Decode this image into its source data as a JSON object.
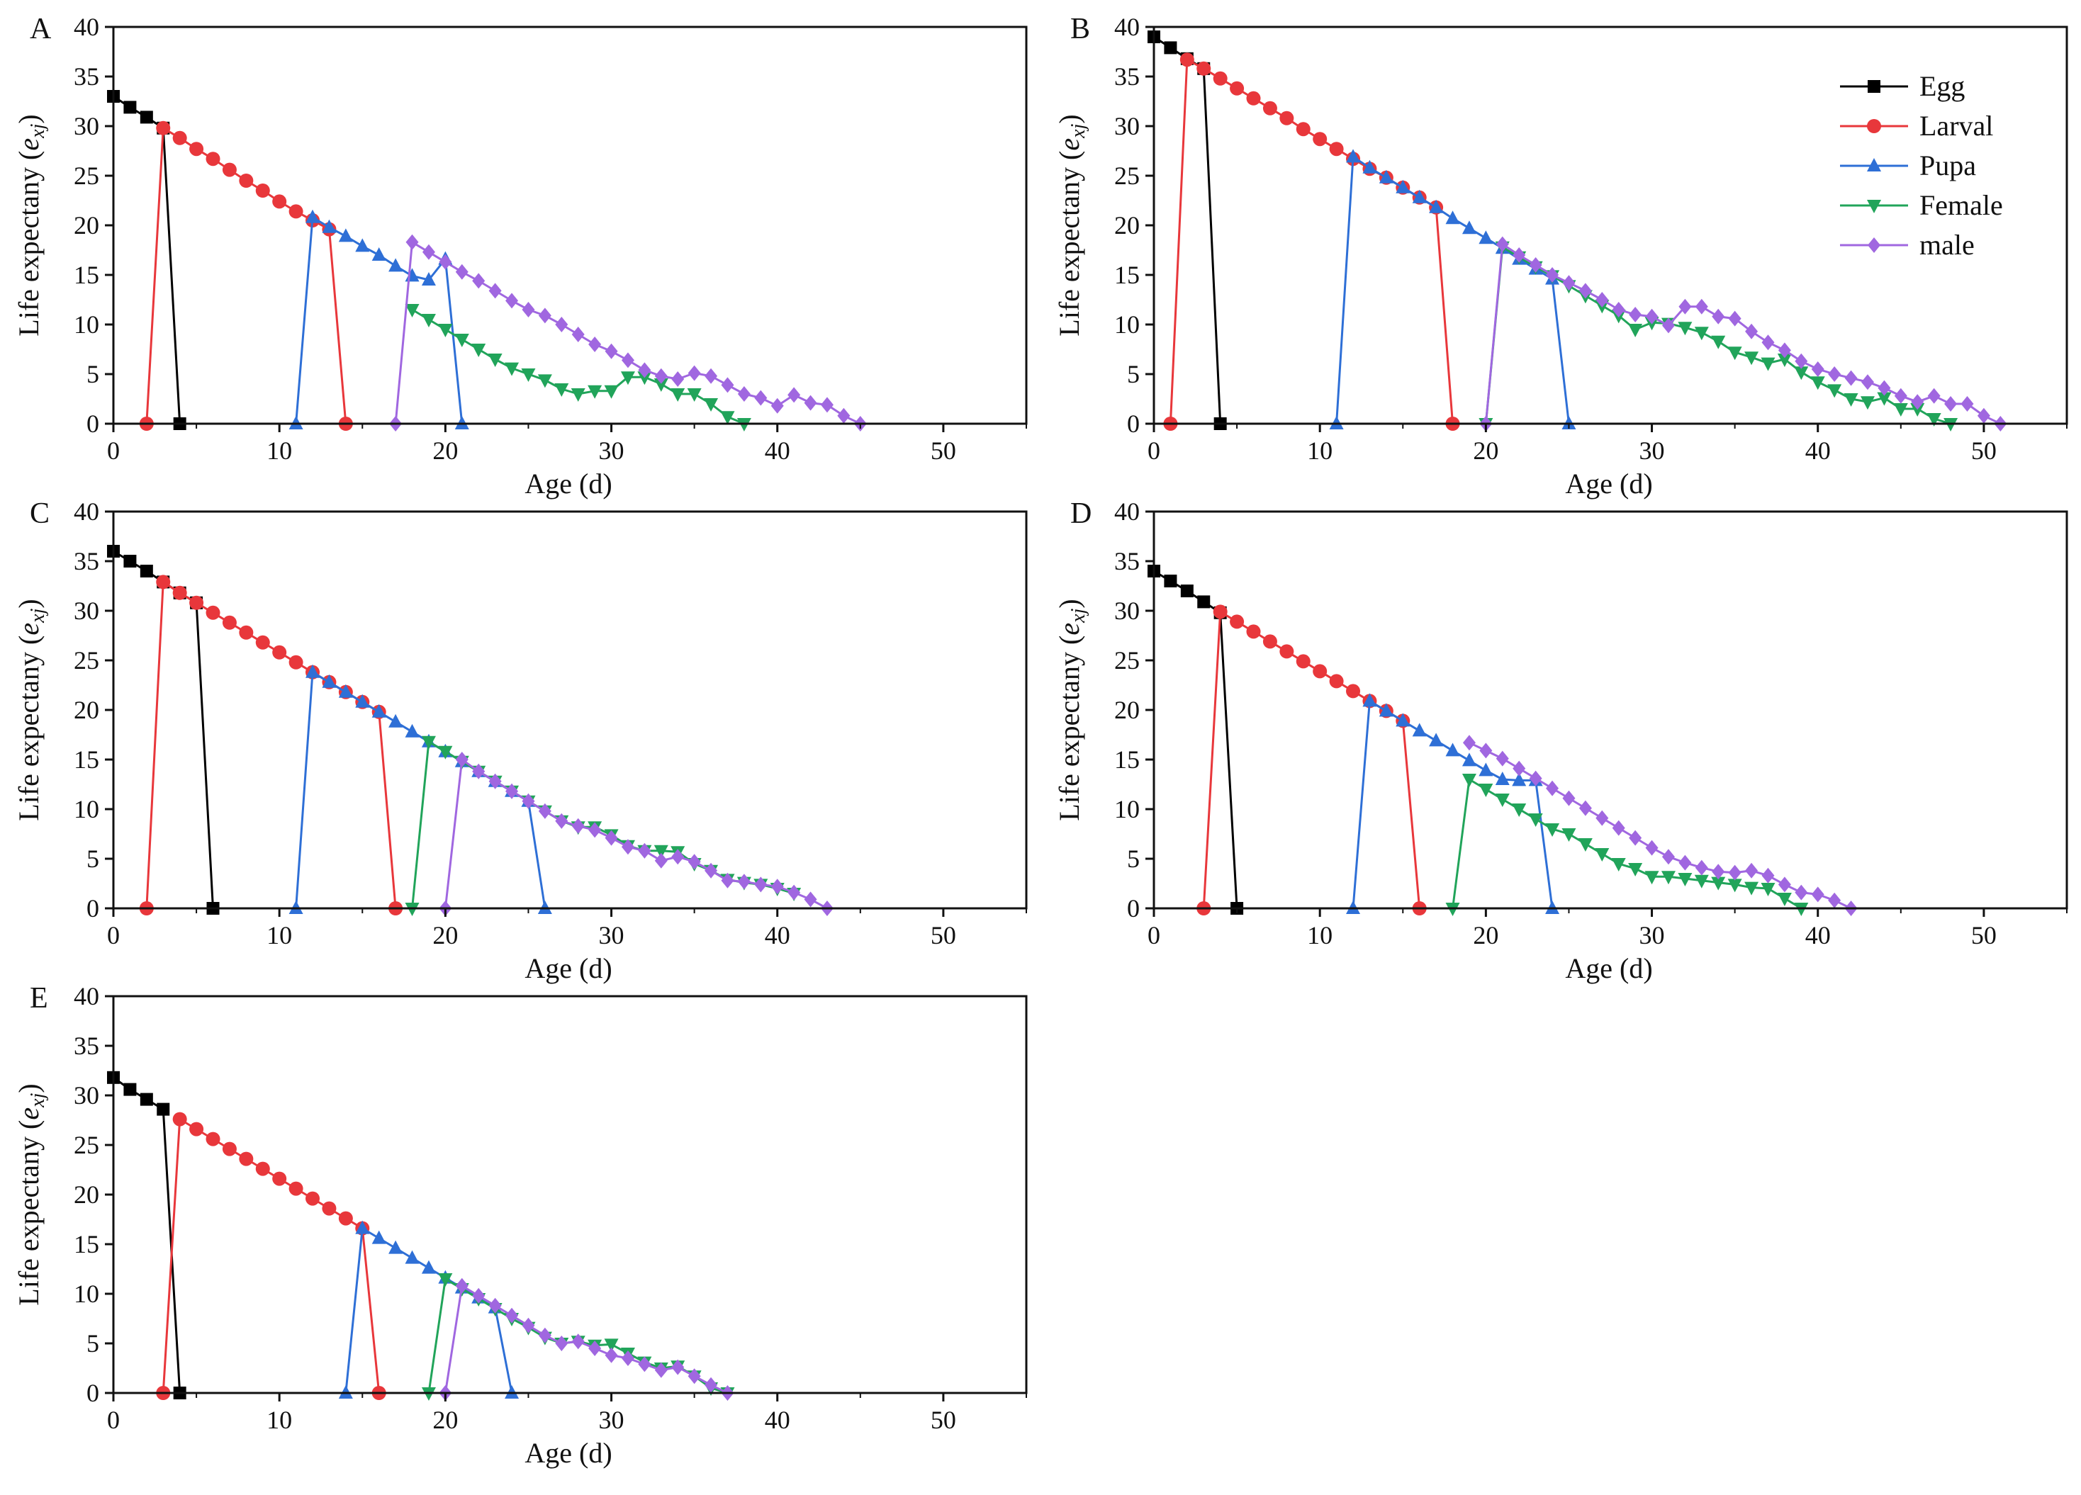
{
  "legend": {
    "entries": [
      {
        "key": "egg",
        "label": "Egg",
        "color": "#000000",
        "marker": "square"
      },
      {
        "key": "larval",
        "label": "Larval",
        "color": "#e8373b",
        "marker": "circle"
      },
      {
        "key": "pupa",
        "label": "Pupa",
        "color": "#2e6fd6",
        "marker": "triangle-up"
      },
      {
        "key": "female",
        "label": "Female",
        "color": "#21a45a",
        "marker": "triangle-down"
      },
      {
        "key": "male",
        "label": "male",
        "color": "#a067e0",
        "marker": "diamond"
      }
    ]
  },
  "axis_text": {
    "xlabel": "Age (d)",
    "ylabel_main": "Life expectany (",
    "ylabel_e": "e",
    "ylabel_sub": "xj",
    "ylabel_close": ")"
  },
  "chart_data": [
    {
      "panel": "A",
      "type": "line",
      "xlim": [
        0,
        55
      ],
      "ylim": [
        0,
        40
      ],
      "xticks": [
        0,
        10,
        20,
        30,
        40,
        50
      ],
      "yticks": [
        0,
        5,
        10,
        15,
        20,
        25,
        30,
        35,
        40
      ],
      "series": [
        {
          "name": "Egg",
          "x": [
            0,
            1,
            2,
            3,
            4
          ],
          "y": [
            33,
            31.9,
            30.9,
            29.8,
            0
          ]
        },
        {
          "name": "Larval",
          "x": [
            2,
            3,
            4,
            5,
            6,
            7,
            8,
            9,
            10,
            11,
            12,
            13,
            14
          ],
          "y": [
            0,
            29.8,
            28.8,
            27.7,
            26.7,
            25.6,
            24.5,
            23.5,
            22.4,
            21.4,
            20.5,
            19.6,
            0
          ]
        },
        {
          "name": "Pupa",
          "x": [
            11,
            12,
            13,
            14,
            15,
            16,
            17,
            18,
            19,
            20,
            21
          ],
          "y": [
            0,
            20.8,
            19.8,
            18.9,
            17.9,
            17.0,
            15.9,
            14.9,
            14.5,
            16.6,
            0
          ]
        },
        {
          "name": "Female",
          "x": [
            18,
            19,
            20,
            21,
            22,
            23,
            24,
            25,
            26,
            27,
            28,
            29,
            30,
            31,
            32,
            33,
            34,
            35,
            36,
            37,
            38
          ],
          "y": [
            11.5,
            10.5,
            9.5,
            8.5,
            7.5,
            6.5,
            5.6,
            5.0,
            4.4,
            3.5,
            3.0,
            3.3,
            3.3,
            4.7,
            4.7,
            4.0,
            3.0,
            3.0,
            2.0,
            0.7,
            0
          ]
        },
        {
          "name": "male",
          "x": [
            17,
            18,
            19,
            20,
            21,
            22,
            23,
            24,
            25,
            26,
            27,
            28,
            29,
            30,
            31,
            32,
            33,
            34,
            35,
            36,
            37,
            38,
            39,
            40,
            41,
            42,
            43,
            44,
            45
          ],
          "y": [
            0,
            18.3,
            17.3,
            16.3,
            15.3,
            14.4,
            13.4,
            12.4,
            11.5,
            10.9,
            10.0,
            9.0,
            8.0,
            7.3,
            6.4,
            5.4,
            4.8,
            4.5,
            5.1,
            4.8,
            3.9,
            3.0,
            2.6,
            1.8,
            2.9,
            2.1,
            1.9,
            0.8,
            0
          ]
        }
      ]
    },
    {
      "panel": "B",
      "type": "line",
      "xlim": [
        0,
        55
      ],
      "ylim": [
        0,
        40
      ],
      "xticks": [
        0,
        10,
        20,
        30,
        40,
        50
      ],
      "yticks": [
        0,
        5,
        10,
        15,
        20,
        25,
        30,
        35,
        40
      ],
      "series": [
        {
          "name": "Egg",
          "x": [
            0,
            1,
            2,
            3,
            4
          ],
          "y": [
            39,
            37.9,
            36.8,
            35.8,
            0
          ]
        },
        {
          "name": "Larval",
          "x": [
            1,
            2,
            3,
            4,
            5,
            6,
            7,
            8,
            9,
            10,
            11,
            12,
            13,
            14,
            15,
            16,
            17,
            18
          ],
          "y": [
            0,
            36.7,
            35.8,
            34.8,
            33.8,
            32.8,
            31.8,
            30.8,
            29.7,
            28.7,
            27.7,
            26.7,
            25.7,
            24.8,
            23.8,
            22.8,
            21.8,
            0
          ]
        },
        {
          "name": "Pupa",
          "x": [
            11,
            12,
            13,
            14,
            15,
            16,
            17,
            18,
            19,
            20,
            21,
            22,
            23,
            24,
            25
          ],
          "y": [
            0,
            26.9,
            25.8,
            24.8,
            23.8,
            22.8,
            21.8,
            20.7,
            19.7,
            18.7,
            17.7,
            16.6,
            15.6,
            14.6,
            0
          ]
        },
        {
          "name": "Female",
          "x": [
            20,
            21,
            22,
            23,
            24,
            25,
            26,
            27,
            28,
            29,
            30,
            31,
            32,
            33,
            34,
            35,
            36,
            37,
            38,
            39,
            40,
            41,
            42,
            43,
            44,
            45,
            46,
            47,
            48
          ],
          "y": [
            0,
            17.8,
            16.8,
            15.8,
            14.9,
            13.9,
            12.9,
            11.9,
            10.9,
            9.5,
            10.2,
            10.1,
            9.7,
            9.2,
            8.3,
            7.2,
            6.7,
            6.1,
            6.5,
            5.2,
            4.2,
            3.4,
            2.5,
            2.2,
            2.6,
            1.5,
            1.5,
            0.5,
            0
          ]
        },
        {
          "name": "male",
          "x": [
            20,
            21,
            22,
            23,
            24,
            25,
            26,
            27,
            28,
            29,
            30,
            31,
            32,
            33,
            34,
            35,
            36,
            37,
            38,
            39,
            40,
            41,
            42,
            43,
            44,
            45,
            46,
            47,
            48,
            49,
            50,
            51
          ],
          "y": [
            0,
            18.1,
            17.0,
            16.0,
            15.0,
            14.2,
            13.4,
            12.5,
            11.5,
            11.0,
            10.8,
            9.9,
            11.8,
            11.8,
            10.8,
            10.6,
            9.3,
            8.2,
            7.4,
            6.3,
            5.5,
            5.0,
            4.6,
            4.2,
            3.6,
            2.8,
            2.2,
            2.8,
            2.0,
            2.0,
            0.8,
            0
          ]
        }
      ]
    },
    {
      "panel": "C",
      "type": "line",
      "xlim": [
        0,
        55
      ],
      "ylim": [
        0,
        40
      ],
      "xticks": [
        0,
        10,
        20,
        30,
        40,
        50
      ],
      "yticks": [
        0,
        5,
        10,
        15,
        20,
        25,
        30,
        35,
        40
      ],
      "series": [
        {
          "name": "Egg",
          "x": [
            0,
            1,
            2,
            3,
            4,
            5,
            6
          ],
          "y": [
            36,
            35,
            34,
            32.9,
            31.8,
            30.8,
            0
          ]
        },
        {
          "name": "Larval",
          "x": [
            2,
            3,
            4,
            5,
            6,
            7,
            8,
            9,
            10,
            11,
            12,
            13,
            14,
            15,
            16,
            17
          ],
          "y": [
            0,
            32.9,
            31.8,
            30.8,
            29.8,
            28.8,
            27.8,
            26.8,
            25.8,
            24.8,
            23.8,
            22.8,
            21.8,
            20.8,
            19.8,
            0
          ]
        },
        {
          "name": "Pupa",
          "x": [
            11,
            12,
            13,
            14,
            15,
            16,
            17,
            18,
            19,
            20,
            21,
            22,
            23,
            24,
            25,
            26
          ],
          "y": [
            0,
            23.8,
            22.8,
            21.8,
            20.8,
            19.8,
            18.8,
            17.8,
            16.8,
            15.8,
            14.8,
            13.8,
            12.8,
            11.8,
            10.8,
            0
          ]
        },
        {
          "name": "Female",
          "x": [
            18,
            19,
            20,
            21,
            22,
            23,
            24,
            25,
            26,
            27,
            28,
            29,
            30,
            31,
            32,
            33,
            34,
            35,
            36,
            37,
            38,
            39,
            40,
            41
          ],
          "y": [
            0,
            16.8,
            15.8,
            14.8,
            13.8,
            12.8,
            11.8,
            10.8,
            9.8,
            8.8,
            8.2,
            8.2,
            7.4,
            6.3,
            5.8,
            5.8,
            5.7,
            4.5,
            3.8,
            2.9,
            2.6,
            2.4,
            2.0,
            1.5
          ]
        },
        {
          "name": "male",
          "x": [
            20,
            21,
            22,
            23,
            24,
            25,
            26,
            27,
            28,
            29,
            30,
            31,
            32,
            33,
            34,
            35,
            36,
            37,
            38,
            39,
            40,
            41,
            42,
            43
          ],
          "y": [
            0,
            15.0,
            13.8,
            12.8,
            11.8,
            10.8,
            9.8,
            8.8,
            8.3,
            7.9,
            7.1,
            6.2,
            5.8,
            4.8,
            5.2,
            4.7,
            3.8,
            2.8,
            2.7,
            2.4,
            2.2,
            1.6,
            0.9,
            0
          ]
        }
      ]
    },
    {
      "panel": "D",
      "type": "line",
      "xlim": [
        0,
        55
      ],
      "ylim": [
        0,
        40
      ],
      "xticks": [
        0,
        10,
        20,
        30,
        40,
        50
      ],
      "yticks": [
        0,
        5,
        10,
        15,
        20,
        25,
        30,
        35,
        40
      ],
      "series": [
        {
          "name": "Egg",
          "x": [
            0,
            1,
            2,
            3,
            4,
            5
          ],
          "y": [
            34,
            33,
            32,
            30.9,
            29.8,
            0
          ]
        },
        {
          "name": "Larval",
          "x": [
            3,
            4,
            5,
            6,
            7,
            8,
            9,
            10,
            11,
            12,
            13,
            14,
            15,
            16
          ],
          "y": [
            0,
            29.9,
            28.9,
            27.9,
            26.9,
            25.9,
            24.9,
            23.9,
            22.9,
            21.9,
            20.9,
            19.9,
            18.9,
            0
          ]
        },
        {
          "name": "Pupa",
          "x": [
            12,
            13,
            14,
            15,
            16,
            17,
            18,
            19,
            20,
            21,
            22,
            23,
            24
          ],
          "y": [
            0,
            20.9,
            19.9,
            18.9,
            17.9,
            16.9,
            15.9,
            14.9,
            13.9,
            13.0,
            12.9,
            12.9,
            0
          ]
        },
        {
          "name": "Female",
          "x": [
            18,
            19,
            20,
            21,
            22,
            23,
            24,
            25,
            26,
            27,
            28,
            29,
            30,
            31,
            32,
            33,
            34,
            35,
            36,
            37,
            38,
            39
          ],
          "y": [
            0,
            13.0,
            12.0,
            11.0,
            10.0,
            9.0,
            8.0,
            7.5,
            6.5,
            5.5,
            4.5,
            4.0,
            3.2,
            3.2,
            3.0,
            2.8,
            2.6,
            2.4,
            2.1,
            2.0,
            1.0,
            0
          ]
        },
        {
          "name": "male",
          "x": [
            19,
            20,
            21,
            22,
            23,
            24,
            25,
            26,
            27,
            28,
            29,
            30,
            31,
            32,
            33,
            34,
            35,
            36,
            37,
            38,
            39,
            40,
            41,
            42
          ],
          "y": [
            16.7,
            15.9,
            15.1,
            14.1,
            13.1,
            12.1,
            11.1,
            10.1,
            9.1,
            8.1,
            7.1,
            6.1,
            5.2,
            4.6,
            4.1,
            3.7,
            3.6,
            3.8,
            3.3,
            2.4,
            1.6,
            1.4,
            0.8,
            0
          ]
        }
      ]
    },
    {
      "panel": "E",
      "type": "line",
      "xlim": [
        0,
        55
      ],
      "ylim": [
        0,
        40
      ],
      "xticks": [
        0,
        10,
        20,
        30,
        40,
        50
      ],
      "yticks": [
        0,
        5,
        10,
        15,
        20,
        25,
        30,
        35,
        40
      ],
      "series": [
        {
          "name": "Egg",
          "x": [
            0,
            1,
            2,
            3,
            4
          ],
          "y": [
            31.8,
            30.6,
            29.6,
            28.6,
            0
          ]
        },
        {
          "name": "Larval",
          "x": [
            3,
            4,
            5,
            6,
            7,
            8,
            9,
            10,
            11,
            12,
            13,
            14,
            15,
            16
          ],
          "y": [
            0,
            27.6,
            26.6,
            25.6,
            24.6,
            23.6,
            22.6,
            21.6,
            20.6,
            19.6,
            18.6,
            17.6,
            16.6,
            0
          ]
        },
        {
          "name": "Pupa",
          "x": [
            14,
            15,
            16,
            17,
            18,
            19,
            20,
            21,
            22,
            23,
            24
          ],
          "y": [
            0,
            16.6,
            15.6,
            14.6,
            13.6,
            12.6,
            11.6,
            10.6,
            9.6,
            8.6,
            0
          ]
        },
        {
          "name": "Female",
          "x": [
            19,
            20,
            21,
            22,
            23,
            24,
            25,
            26,
            27,
            28,
            29,
            30,
            31,
            32,
            33,
            34,
            35,
            36,
            37
          ],
          "y": [
            0,
            11.5,
            10.5,
            9.5,
            8.5,
            7.5,
            6.6,
            5.6,
            5.0,
            5.2,
            4.8,
            4.9,
            4.0,
            3.1,
            2.5,
            2.7,
            1.7,
            0.5,
            0
          ]
        },
        {
          "name": "male",
          "x": [
            20,
            21,
            22,
            23,
            24,
            25,
            26,
            27,
            28,
            29,
            30,
            31,
            32,
            33,
            34,
            35,
            36,
            37
          ],
          "y": [
            0,
            10.8,
            9.8,
            8.8,
            7.8,
            6.8,
            5.8,
            5.0,
            5.2,
            4.5,
            3.8,
            3.5,
            2.9,
            2.3,
            2.6,
            1.7,
            0.8,
            0
          ]
        }
      ]
    }
  ]
}
